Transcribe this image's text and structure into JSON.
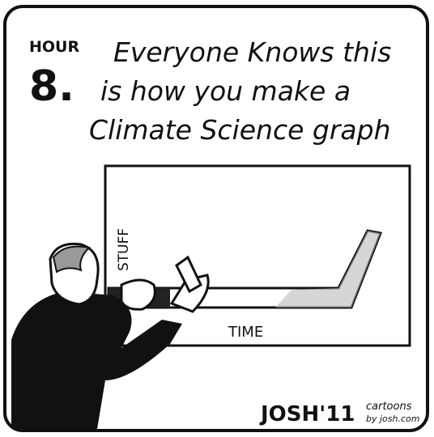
{
  "header": {
    "hour": "HOUR",
    "number": "8.",
    "caption": [
      "Everyone Knows this",
      "is how you make a",
      "Climate Science graph"
    ]
  },
  "graph": {
    "y_label": "STUFF",
    "x_label": "TIME"
  },
  "signature": {
    "name": "JOSH'11",
    "site": [
      "cartoons",
      "by josh.com"
    ]
  }
}
